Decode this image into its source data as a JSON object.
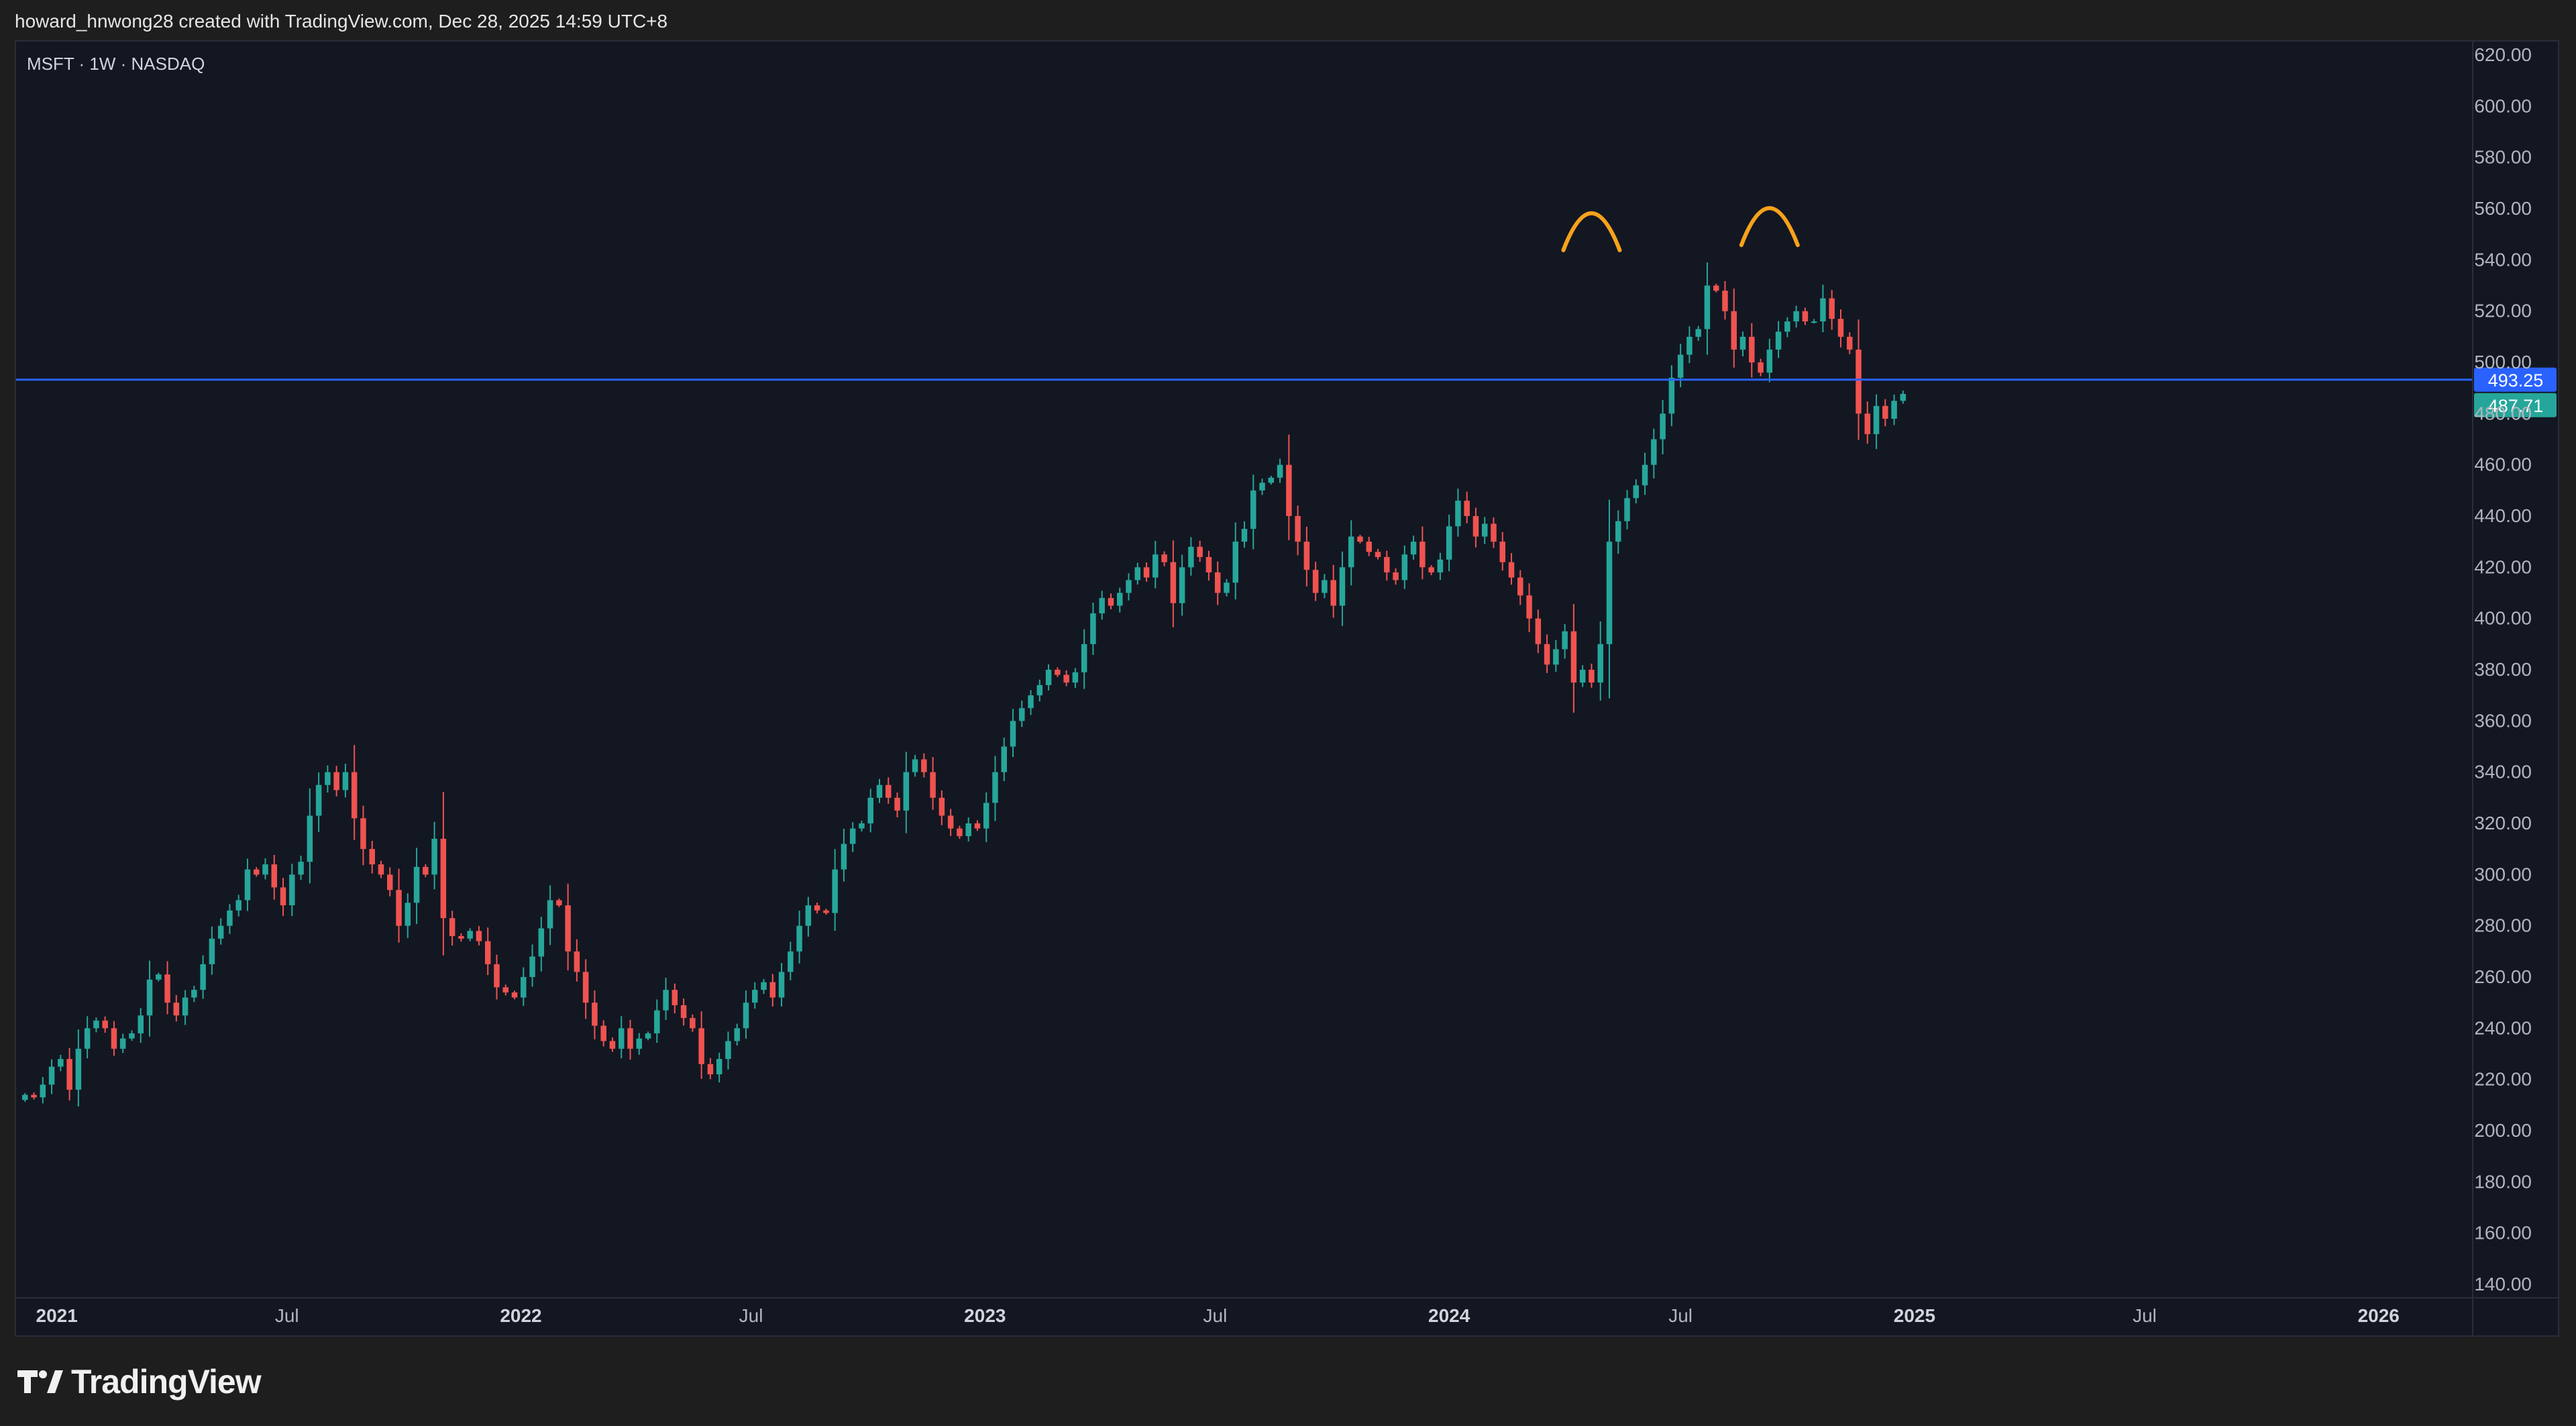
{
  "header": {
    "attribution": "howard_hnwong28 created with TradingView.com, Dec 28, 2025 14:59 UTC+8"
  },
  "footer": {
    "logo_text": "TradingView"
  },
  "colors": {
    "background": "#131722",
    "up": "#26a69a",
    "down": "#ef5350",
    "hline": "#2962ff",
    "annotation": "#f7a21b",
    "axis_text": "#b2b5be"
  },
  "chart_data": {
    "type": "candlestick",
    "title": "MSFT · 1W · NASDAQ",
    "symbol": "MSFT",
    "interval": "1W",
    "exchange": "NASDAQ",
    "ylim": [
      135,
      625
    ],
    "y_ticks": [
      "620.00",
      "600.00",
      "580.00",
      "560.00",
      "540.00",
      "520.00",
      "500.00",
      "480.00",
      "460.00",
      "440.00",
      "420.00",
      "400.00",
      "380.00",
      "360.00",
      "340.00",
      "320.00",
      "300.00",
      "280.00",
      "260.00",
      "240.00",
      "220.00",
      "200.00",
      "180.00",
      "160.00",
      "140.00"
    ],
    "x_ticks": [
      {
        "label": "2021",
        "date": "2021-01-01",
        "bold": true
      },
      {
        "label": "Jul",
        "date": "2021-07-01",
        "bold": false
      },
      {
        "label": "2022",
        "date": "2022-01-01",
        "bold": true
      },
      {
        "label": "Jul",
        "date": "2022-07-01",
        "bold": false
      },
      {
        "label": "2023",
        "date": "2023-01-01",
        "bold": true
      },
      {
        "label": "Jul",
        "date": "2023-07-01",
        "bold": false
      },
      {
        "label": "2024",
        "date": "2024-01-01",
        "bold": true
      },
      {
        "label": "Jul",
        "date": "2024-07-01",
        "bold": false
      },
      {
        "label": "2025",
        "date": "2025-01-01",
        "bold": true
      },
      {
        "label": "Jul",
        "date": "2025-07-01",
        "bold": false
      },
      {
        "label": "2026",
        "date": "2026-01-01",
        "bold": true
      }
    ],
    "x_range": [
      "2020-11-30",
      "2026-03-16"
    ],
    "horizontal_line": {
      "value": 493.25,
      "label": "493.25"
    },
    "last_price": {
      "value": 487.71,
      "label": "487.71"
    },
    "close_series": {
      "start_week": "2020-12-07",
      "closes": [
        214,
        213,
        218,
        225,
        228,
        216,
        232,
        240,
        243,
        240,
        232,
        236,
        238,
        245,
        259,
        261,
        250,
        245,
        252,
        255,
        265,
        275,
        280,
        286,
        290,
        302,
        300,
        304,
        295,
        288,
        300,
        305,
        323,
        335,
        340,
        333,
        340,
        322,
        310,
        304,
        300,
        294,
        280,
        289,
        303,
        300,
        314,
        283,
        276,
        275,
        278,
        274,
        265,
        256,
        254,
        252,
        260,
        268,
        279,
        290,
        288,
        270,
        262,
        250,
        241,
        235,
        232,
        240,
        232,
        236,
        238,
        247,
        255,
        249,
        244,
        240,
        226,
        222,
        228,
        235,
        240,
        250,
        255,
        258,
        252,
        262,
        270,
        280,
        288,
        286,
        285,
        302,
        312,
        318,
        320,
        330,
        335,
        330,
        325,
        340,
        345,
        340,
        330,
        323,
        318,
        315,
        320,
        318,
        328,
        340,
        350,
        360,
        365,
        370,
        374,
        380,
        378,
        375,
        379,
        390,
        402,
        408,
        405,
        410,
        415,
        420,
        416,
        425,
        422,
        406,
        420,
        428,
        424,
        418,
        410,
        414,
        430,
        435,
        450,
        453,
        455,
        460,
        440,
        430,
        419,
        410,
        415,
        405,
        420,
        432,
        430,
        426,
        424,
        418,
        415,
        425,
        430,
        420,
        418,
        423,
        436,
        446,
        440,
        432,
        437,
        430,
        422,
        416,
        409,
        400,
        390,
        382,
        388,
        395,
        375,
        380,
        375,
        390,
        430,
        438,
        447,
        452,
        460,
        470,
        480,
        494,
        503,
        510,
        513,
        530,
        528,
        520,
        505,
        510,
        500,
        496,
        505,
        512,
        516,
        520,
        516,
        516,
        525,
        517,
        510,
        505,
        480,
        472,
        483,
        478,
        485,
        487.71
      ]
    },
    "annotations": [
      {
        "type": "arc",
        "label": "first top",
        "at_week": 176,
        "peak": 559
      },
      {
        "type": "arc",
        "label": "second top",
        "at_week": 196,
        "peak": 561
      }
    ]
  }
}
